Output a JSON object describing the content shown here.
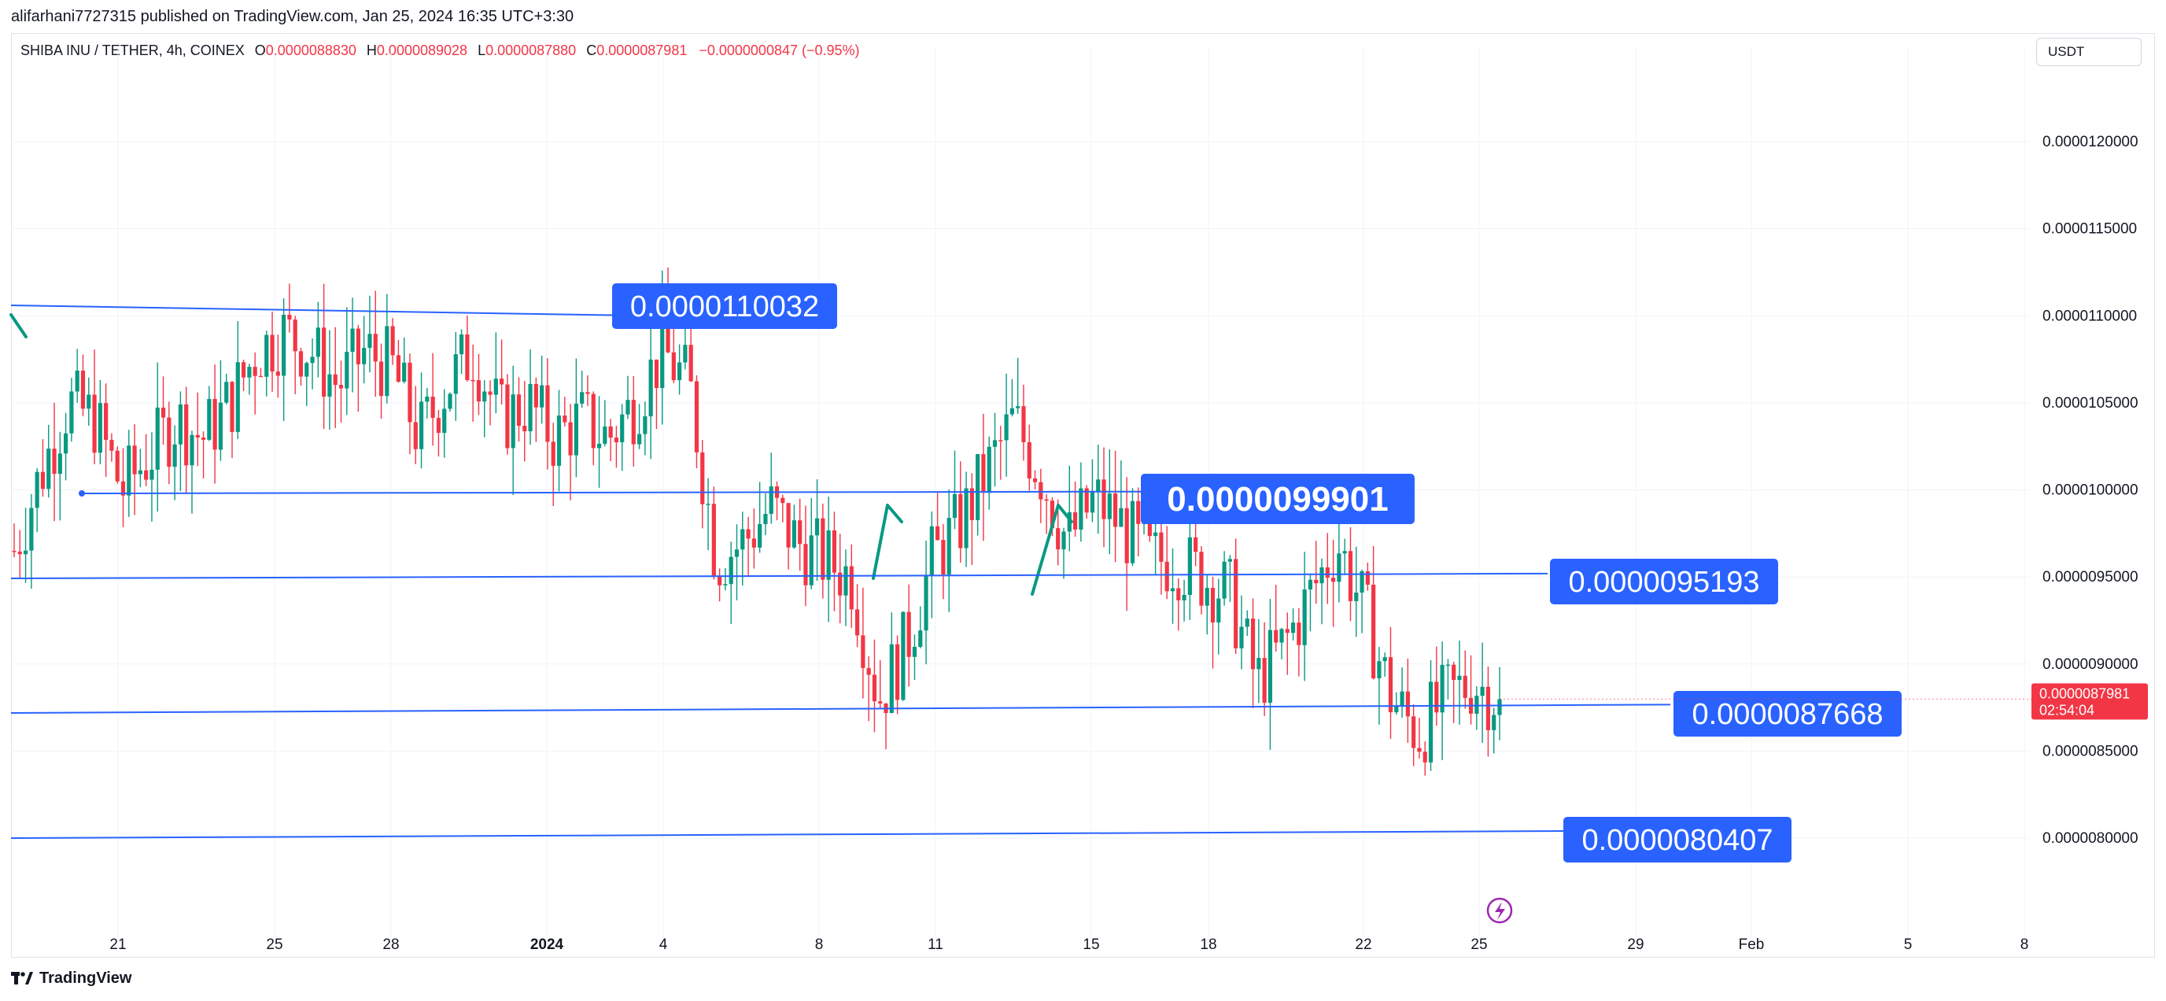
{
  "publisher_line": "alifarhani7727315 published on TradingView.com, Jan 25, 2024 16:35 UTC+3:30",
  "legend": {
    "symbol": "SHIBA INU / TETHER, 4h, COINEX",
    "open_label": "O",
    "open": "0.0000088830",
    "high_label": "H",
    "high": "0.0000089028",
    "low_label": "L",
    "low": "0.0000087880",
    "close_label": "C",
    "close": "0.0000087981",
    "change": "−0.0000000847 (−0.95%)"
  },
  "currency": "USDT",
  "brand": "TradingView",
  "colors": {
    "up": "#089981",
    "down": "#f23645",
    "level_line": "#2962ff",
    "label_bg": "#2962ff",
    "grid": "#f0f3fa",
    "axis_text": "#131722"
  },
  "chart_data": {
    "type": "candlestick",
    "y_axis": {
      "range": [
        7.6e-06,
        1.25e-05
      ],
      "ticks": [
        "0.0000080000",
        "0.0000085000",
        "0.0000090000",
        "0.0000095000",
        "0.0000100000",
        "0.0000105000",
        "0.0000110000",
        "0.0000115000",
        "0.0000120000"
      ],
      "tick_values": [
        8e-06,
        8.5e-06,
        9e-06,
        9.5e-06,
        1e-05,
        1.05e-05,
        1.1e-05,
        1.15e-05,
        1.2e-05
      ]
    },
    "x_axis": {
      "ticks": [
        "21",
        "25",
        "28",
        "2024",
        "4",
        "8",
        "11",
        "15",
        "18",
        "22",
        "25",
        "29",
        "Feb",
        "5",
        "8"
      ],
      "bold": [
        "2024"
      ]
    },
    "last_price": {
      "value": 8.7981e-06,
      "label": "0.0000087981",
      "countdown": "02:54:04"
    },
    "levels": [
      {
        "value": 1.10032e-05,
        "label": "0.0000110032",
        "size": "normal"
      },
      {
        "value": 9.9901e-06,
        "label": "0.0000099901",
        "size": "large"
      },
      {
        "value": 9.5193e-06,
        "label": "0.0000095193",
        "size": "normal"
      },
      {
        "value": 8.7668e-06,
        "label": "0.0000087668",
        "size": "normal"
      },
      {
        "value": 8.0407e-06,
        "label": "0.0000080407",
        "size": "normal"
      }
    ],
    "series": [
      {
        "name": "SHIB/USDT",
        "anchors": [
          9.65e-06,
          1.01e-05,
          1.05e-05,
          1.04e-05,
          1e-05,
          1.02e-05,
          1.04e-05,
          1.03e-05,
          1.05e-05,
          1.08e-05,
          1.09e-05,
          1.08e-05,
          1.06e-05,
          1.08e-05,
          1.07e-05,
          1.03e-05,
          1.06e-05,
          1.08e-05,
          1.04e-05,
          1.05e-05,
          1.03e-05,
          1.04e-05,
          1.03e-05,
          1.05e-05,
          1.08e-05,
          1.06e-05,
          9.6e-06,
          9.7e-06,
          9.9e-06,
          9.7e-06,
          9.6e-06,
          9.5e-06,
          8.8e-06,
          9.1e-06,
          9.6e-06,
          9.8e-06,
          1.01e-05,
          1.04e-05,
          1.01e-05,
          9.7e-06,
          9.95e-06,
          9.8e-06,
          9.6e-06,
          9.6e-06,
          9.5e-06,
          9.4e-06,
          8.9e-06,
          9.1e-06,
          9.4e-06,
          9.7e-06,
          9.3e-06,
          8.8e-06,
          8.6e-06,
          8.8e-06,
          8.9e-06,
          8.798e-06
        ]
      }
    ]
  }
}
